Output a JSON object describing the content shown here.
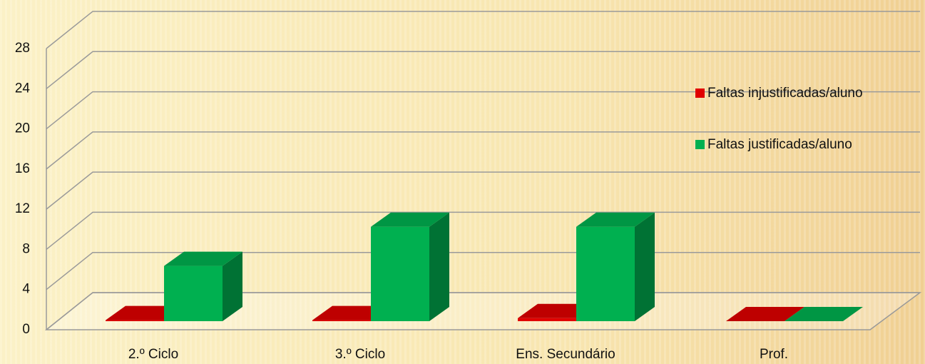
{
  "chart_data": {
    "type": "bar",
    "categories": [
      "2.º Ciclo",
      "3.º Ciclo",
      "Ens. Secundário",
      "Prof."
    ],
    "series": [
      {
        "name": "Faltas injustificadas/aluno",
        "color": "#e00000",
        "values": [
          0.1,
          0.1,
          0.3,
          0
        ]
      },
      {
        "name": "Faltas justificadas/aluno",
        "color": "#00b050",
        "values": [
          5.5,
          9.4,
          9.4,
          0
        ]
      }
    ],
    "ylim": [
      0,
      28
    ],
    "yticks": [
      0,
      4,
      8,
      12,
      16,
      20,
      24,
      28
    ],
    "grid": true,
    "legend": "right"
  }
}
